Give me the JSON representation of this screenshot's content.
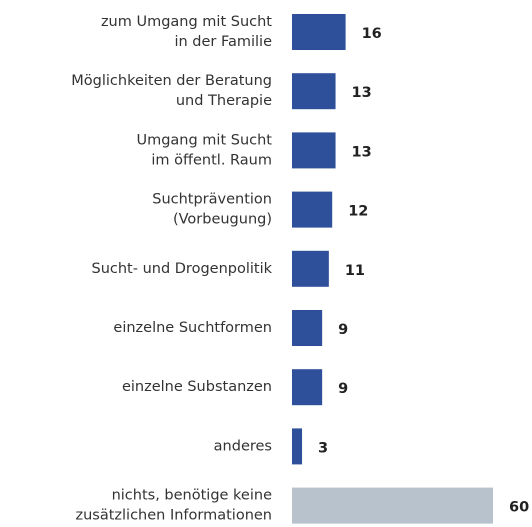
{
  "chart_data": {
    "type": "bar",
    "orientation": "horizontal",
    "categories": [
      [
        "zum Umgang mit Sucht",
        "in der Familie"
      ],
      [
        "Möglichkeiten der Beratung",
        "und Therapie"
      ],
      [
        "Umgang mit Sucht",
        "im öffentl. Raum"
      ],
      [
        "Suchtprävention",
        "(Vorbeugung)"
      ],
      [
        "Sucht- und Drogenpolitik"
      ],
      [
        "einzelne Suchtformen"
      ],
      [
        "einzelne Substanzen"
      ],
      [
        "anderes"
      ],
      [
        "nichts, benötige keine",
        "zusätzlichen Informationen"
      ]
    ],
    "values": [
      16,
      13,
      13,
      12,
      11,
      9,
      9,
      3,
      60
    ],
    "colors": [
      "#2e4f99",
      "#2e4f99",
      "#2e4f99",
      "#2e4f99",
      "#2e4f99",
      "#2e4f99",
      "#2e4f99",
      "#2e4f99",
      "#b7c2cd"
    ]
  }
}
